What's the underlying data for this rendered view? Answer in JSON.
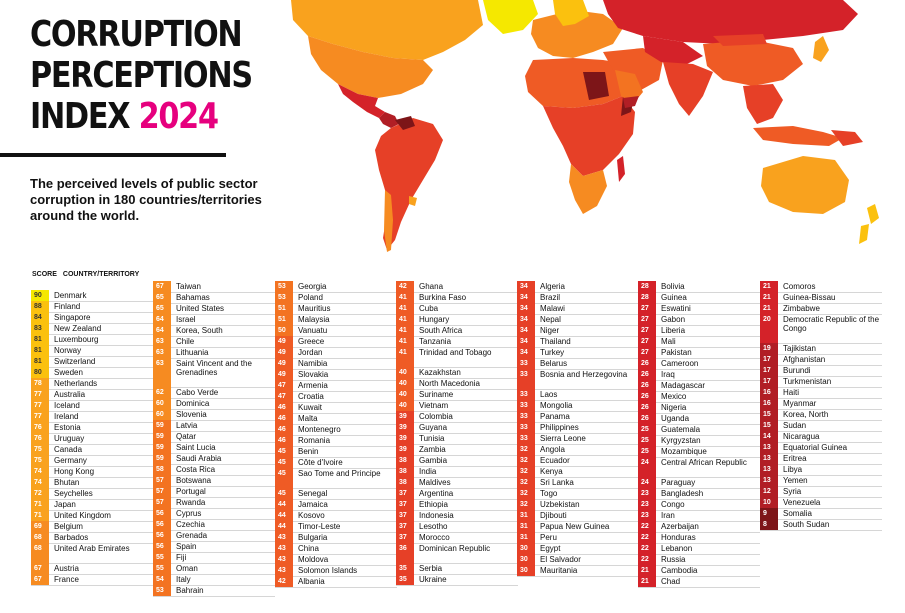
{
  "header": {
    "title_line1": "CORRUPTION",
    "title_line2": "PERCEPTIONS",
    "title_line3": "INDEX",
    "year": "2024",
    "subtitle": "The perceived levels of public sector corruption in 180 countries/territories around the world."
  },
  "table": {
    "score_header": "SCORE",
    "country_header": "COUNTRY/TERRITORY",
    "columns": [
      [
        [
          "90",
          "Denmark"
        ],
        [
          "88",
          "Finland"
        ],
        [
          "84",
          "Singapore"
        ],
        [
          "83",
          "New Zealand"
        ],
        [
          "81",
          "Luxembourg"
        ],
        [
          "81",
          "Norway"
        ],
        [
          "81",
          "Switzerland"
        ],
        [
          "80",
          "Sweden"
        ],
        [
          "78",
          "Netherlands"
        ],
        [
          "77",
          "Australia"
        ],
        [
          "77",
          "Iceland"
        ],
        [
          "77",
          "Ireland"
        ],
        [
          "76",
          "Estonia"
        ],
        [
          "76",
          "Uruguay"
        ],
        [
          "75",
          "Canada"
        ],
        [
          "75",
          "Germany"
        ],
        [
          "74",
          "Hong Kong"
        ],
        [
          "74",
          "Bhutan"
        ],
        [
          "72",
          "Seychelles"
        ],
        [
          "71",
          "Japan"
        ],
        [
          "71",
          "United Kingdom"
        ],
        [
          "69",
          "Belgium"
        ],
        [
          "68",
          "Barbados"
        ],
        [
          "68",
          "United Arab Emirates"
        ],
        [
          "67",
          "Austria"
        ],
        [
          "67",
          "France"
        ]
      ],
      [
        [
          "67",
          "Taiwan"
        ],
        [
          "65",
          "Bahamas"
        ],
        [
          "65",
          "United States"
        ],
        [
          "64",
          "Israel"
        ],
        [
          "64",
          "Korea, South"
        ],
        [
          "63",
          "Chile"
        ],
        [
          "63",
          "Lithuania"
        ],
        [
          "63",
          "Saint Vincent and the Grenadines"
        ],
        [
          "62",
          "Cabo Verde"
        ],
        [
          "60",
          "Dominica"
        ],
        [
          "60",
          "Slovenia"
        ],
        [
          "59",
          "Latvia"
        ],
        [
          "59",
          "Qatar"
        ],
        [
          "59",
          "Saint Lucia"
        ],
        [
          "59",
          "Saudi Arabia"
        ],
        [
          "58",
          "Costa Rica"
        ],
        [
          "57",
          "Botswana"
        ],
        [
          "57",
          "Portugal"
        ],
        [
          "57",
          "Rwanda"
        ],
        [
          "56",
          "Cyprus"
        ],
        [
          "56",
          "Czechia"
        ],
        [
          "56",
          "Grenada"
        ],
        [
          "56",
          "Spain"
        ],
        [
          "55",
          "Fiji"
        ],
        [
          "55",
          "Oman"
        ],
        [
          "54",
          "Italy"
        ],
        [
          "53",
          "Bahrain"
        ]
      ],
      [
        [
          "53",
          "Georgia"
        ],
        [
          "53",
          "Poland"
        ],
        [
          "51",
          "Mauritius"
        ],
        [
          "51",
          "Malaysia"
        ],
        [
          "50",
          "Vanuatu"
        ],
        [
          "49",
          "Greece"
        ],
        [
          "49",
          "Jordan"
        ],
        [
          "49",
          "Namibia"
        ],
        [
          "49",
          "Slovakia"
        ],
        [
          "47",
          "Armenia"
        ],
        [
          "47",
          "Croatia"
        ],
        [
          "46",
          "Kuwait"
        ],
        [
          "46",
          "Malta"
        ],
        [
          "46",
          "Montenegro"
        ],
        [
          "46",
          "Romania"
        ],
        [
          "45",
          "Benin"
        ],
        [
          "45",
          "Côte d'Ivoire"
        ],
        [
          "45",
          "Sao Tome and Principe"
        ],
        [
          "45",
          "Senegal"
        ],
        [
          "44",
          "Jamaica"
        ],
        [
          "44",
          "Kosovo"
        ],
        [
          "44",
          "Timor-Leste"
        ],
        [
          "43",
          "Bulgaria"
        ],
        [
          "43",
          "China"
        ],
        [
          "43",
          "Moldova"
        ],
        [
          "43",
          "Solomon Islands"
        ],
        [
          "42",
          "Albania"
        ]
      ],
      [
        [
          "42",
          "Ghana"
        ],
        [
          "41",
          "Burkina Faso"
        ],
        [
          "41",
          "Cuba"
        ],
        [
          "41",
          "Hungary"
        ],
        [
          "41",
          "South Africa"
        ],
        [
          "41",
          "Tanzania"
        ],
        [
          "41",
          "Trinidad and Tobago"
        ],
        [
          "40",
          "Kazakhstan"
        ],
        [
          "40",
          "North Macedonia"
        ],
        [
          "40",
          "Suriname"
        ],
        [
          "40",
          "Vietnam"
        ],
        [
          "39",
          "Colombia"
        ],
        [
          "39",
          "Guyana"
        ],
        [
          "39",
          "Tunisia"
        ],
        [
          "39",
          "Zambia"
        ],
        [
          "38",
          "Gambia"
        ],
        [
          "38",
          "India"
        ],
        [
          "38",
          "Maldives"
        ],
        [
          "37",
          "Argentina"
        ],
        [
          "37",
          "Ethiopia"
        ],
        [
          "37",
          "Indonesia"
        ],
        [
          "37",
          "Lesotho"
        ],
        [
          "37",
          "Morocco"
        ],
        [
          "36",
          "Dominican Republic"
        ],
        [
          "35",
          "Serbia"
        ],
        [
          "35",
          "Ukraine"
        ]
      ],
      [
        [
          "34",
          "Algeria"
        ],
        [
          "34",
          "Brazil"
        ],
        [
          "34",
          "Malawi"
        ],
        [
          "34",
          "Nepal"
        ],
        [
          "34",
          "Niger"
        ],
        [
          "34",
          "Thailand"
        ],
        [
          "34",
          "Turkey"
        ],
        [
          "33",
          "Belarus"
        ],
        [
          "33",
          "Bosnia and Herzegovina"
        ],
        [
          "33",
          "Laos"
        ],
        [
          "33",
          "Mongolia"
        ],
        [
          "33",
          "Panama"
        ],
        [
          "33",
          "Philippines"
        ],
        [
          "33",
          "Sierra Leone"
        ],
        [
          "32",
          "Angola"
        ],
        [
          "32",
          "Ecuador"
        ],
        [
          "32",
          "Kenya"
        ],
        [
          "32",
          "Sri Lanka"
        ],
        [
          "32",
          "Togo"
        ],
        [
          "32",
          "Uzbekistan"
        ],
        [
          "31",
          "Djibouti"
        ],
        [
          "31",
          "Papua New Guinea"
        ],
        [
          "31",
          "Peru"
        ],
        [
          "30",
          "Egypt"
        ],
        [
          "30",
          "El Salvador"
        ],
        [
          "30",
          "Mauritania"
        ]
      ],
      [
        [
          "28",
          "Bolivia"
        ],
        [
          "28",
          "Guinea"
        ],
        [
          "27",
          "Eswatini"
        ],
        [
          "27",
          "Gabon"
        ],
        [
          "27",
          "Liberia"
        ],
        [
          "27",
          "Mali"
        ],
        [
          "27",
          "Pakistan"
        ],
        [
          "26",
          "Cameroon"
        ],
        [
          "26",
          "Iraq"
        ],
        [
          "26",
          "Madagascar"
        ],
        [
          "26",
          "Mexico"
        ],
        [
          "26",
          "Nigeria"
        ],
        [
          "26",
          "Uganda"
        ],
        [
          "25",
          "Guatemala"
        ],
        [
          "25",
          "Kyrgyzstan"
        ],
        [
          "25",
          "Mozambique"
        ],
        [
          "24",
          "Central African Republic"
        ],
        [
          "24",
          "Paraguay"
        ],
        [
          "23",
          "Bangladesh"
        ],
        [
          "23",
          "Congo"
        ],
        [
          "23",
          "Iran"
        ],
        [
          "22",
          "Azerbaijan"
        ],
        [
          "22",
          "Honduras"
        ],
        [
          "22",
          "Lebanon"
        ],
        [
          "22",
          "Russia"
        ],
        [
          "21",
          "Cambodia"
        ],
        [
          "21",
          "Chad"
        ]
      ],
      [
        [
          "21",
          "Comoros"
        ],
        [
          "21",
          "Guinea-Bissau"
        ],
        [
          "21",
          "Zimbabwe"
        ],
        [
          "20",
          "Democratic Republic of the Congo"
        ],
        [
          "19",
          "Tajikistan"
        ],
        [
          "17",
          "Afghanistan"
        ],
        [
          "17",
          "Burundi"
        ],
        [
          "17",
          "Turkmenistan"
        ],
        [
          "16",
          "Haiti"
        ],
        [
          "16",
          "Myanmar"
        ],
        [
          "15",
          "Korea, North"
        ],
        [
          "15",
          "Sudan"
        ],
        [
          "14",
          "Nicaragua"
        ],
        [
          "13",
          "Equatorial Guinea"
        ],
        [
          "13",
          "Eritrea"
        ],
        [
          "13",
          "Libya"
        ],
        [
          "13",
          "Yemen"
        ],
        [
          "12",
          "Syria"
        ],
        [
          "10",
          "Venezuela"
        ],
        [
          "9",
          "Somalia"
        ],
        [
          "8",
          "South Sudan"
        ]
      ]
    ]
  },
  "colors": {
    "score_90_plus": "#f5e800",
    "score_80_89": "#fbc10e",
    "score_70_79": "#f9a21e",
    "score_60_69": "#f68b21",
    "score_50_59": "#f37321",
    "score_40_49": "#ef5b25",
    "score_30_39": "#e64027",
    "score_20_29": "#d42229",
    "score_10_19": "#b11e25",
    "score_0_9": "#7d1518",
    "title_accent": "#e6007e"
  }
}
